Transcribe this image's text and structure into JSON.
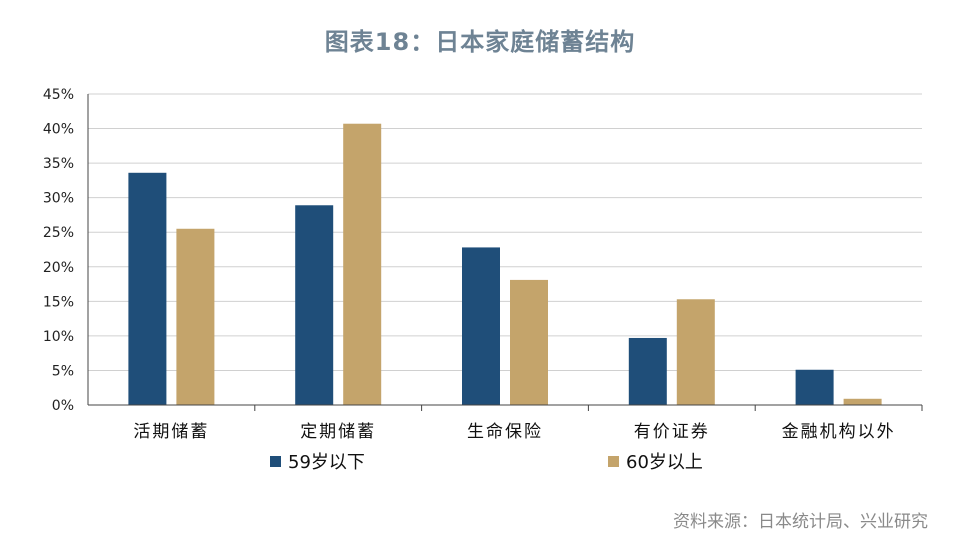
{
  "title": "图表18：日本家庭储蓄结构",
  "source": "资料来源：日本统计局、兴业研究",
  "colors": {
    "series_a": "#1f4e79",
    "series_b": "#c4a46b",
    "grid": "#d0d0d0",
    "axis": "#444444"
  },
  "chart_data": {
    "type": "bar",
    "categories": [
      "活期储蓄",
      "定期储蓄",
      "生命保险",
      "有价证券",
      "金融机构以外"
    ],
    "series": [
      {
        "name": "59岁以下",
        "values": [
          33.6,
          28.9,
          22.8,
          9.7,
          5.1
        ]
      },
      {
        "name": "60岁以上",
        "values": [
          25.5,
          40.7,
          18.1,
          15.3,
          0.9
        ]
      }
    ],
    "ylim": [
      0,
      45
    ],
    "yticks": [
      "0%",
      "5%",
      "10%",
      "15%",
      "20%",
      "25%",
      "30%",
      "35%",
      "40%",
      "45%"
    ],
    "grid": true,
    "legend_position": "bottom"
  }
}
